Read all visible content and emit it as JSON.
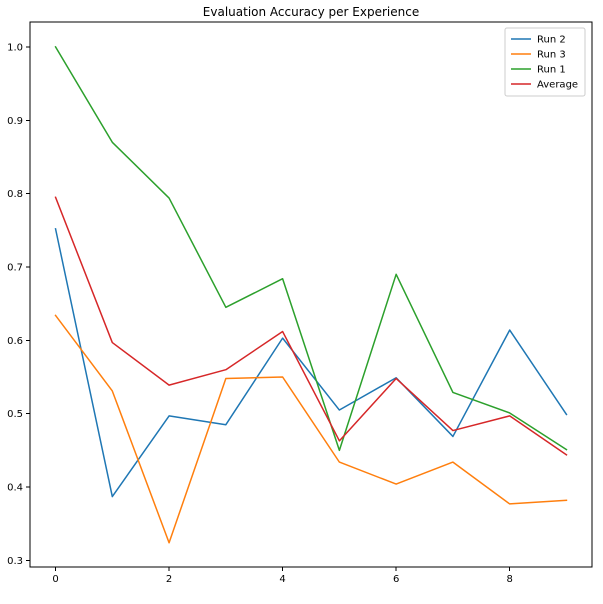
{
  "chart_data": {
    "type": "line",
    "title": "Evaluation Accuracy per Experience",
    "xlabel": "",
    "ylabel": "",
    "x": [
      0,
      1,
      2,
      3,
      4,
      5,
      6,
      7,
      8,
      9
    ],
    "xlim": [
      -0.45,
      9.45
    ],
    "ylim": [
      0.291,
      1.034
    ],
    "xticks": [
      0,
      2,
      4,
      6,
      8
    ],
    "yticks": [
      0.3,
      0.4,
      0.5,
      0.6,
      0.7,
      0.8,
      0.9,
      1.0
    ],
    "xtick_labels": [
      "0",
      "2",
      "4",
      "6",
      "8"
    ],
    "ytick_labels": [
      "0.3",
      "0.4",
      "0.5",
      "0.6",
      "0.7",
      "0.8",
      "0.9",
      "1.0"
    ],
    "grid": false,
    "legend_position": "top-right",
    "series": [
      {
        "name": "Run 2",
        "color": "#1f77b4",
        "values": [
          0.752,
          0.387,
          0.497,
          0.485,
          0.603,
          0.505,
          0.549,
          0.469,
          0.614,
          0.499
        ]
      },
      {
        "name": "Run 3",
        "color": "#ff7f0e",
        "values": [
          0.634,
          0.531,
          0.324,
          0.548,
          0.55,
          0.434,
          0.404,
          0.434,
          0.377,
          0.382
        ]
      },
      {
        "name": "Run 1",
        "color": "#2ca02c",
        "values": [
          1.0,
          0.87,
          0.794,
          0.645,
          0.684,
          0.45,
          0.69,
          0.529,
          0.501,
          0.451
        ]
      },
      {
        "name": "Average",
        "color": "#d62728",
        "values": [
          0.795,
          0.597,
          0.539,
          0.56,
          0.612,
          0.463,
          0.548,
          0.477,
          0.497,
          0.444
        ]
      }
    ]
  }
}
